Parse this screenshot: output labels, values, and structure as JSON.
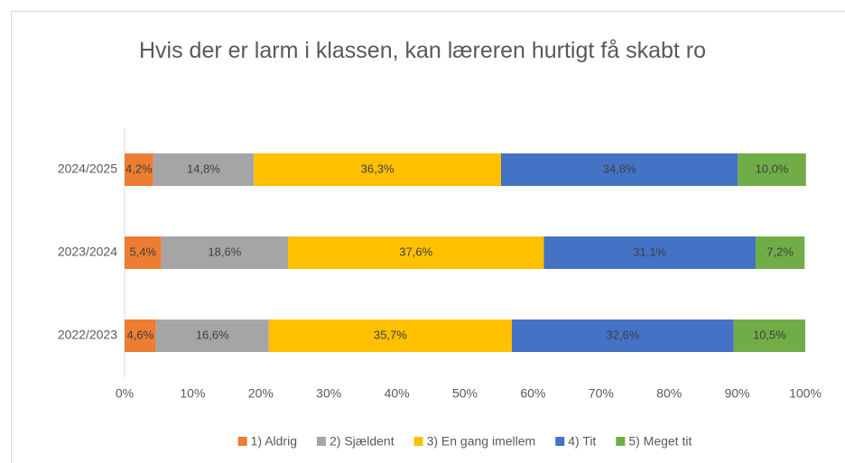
{
  "chart_data": {
    "type": "bar",
    "orientation": "horizontal",
    "stacked": true,
    "title": "Hvis der er larm i klassen, kan læreren hurtigt få skabt ro",
    "categories": [
      "2024/2025",
      "2023/2024",
      "2022/2023"
    ],
    "series": [
      {
        "name": "1) Aldrig",
        "color": "#ed7d31",
        "values": [
          4.2,
          5.4,
          4.6
        ],
        "value_labels": [
          "4,2%",
          "5,4%",
          "4,6%"
        ]
      },
      {
        "name": "2) Sjældent",
        "color": "#a5a5a5",
        "values": [
          14.8,
          18.6,
          16.6
        ],
        "value_labels": [
          "14,8%",
          "18,6%",
          "16,6%"
        ]
      },
      {
        "name": "3) En gang imellem",
        "color": "#ffc000",
        "values": [
          36.3,
          37.6,
          35.7
        ],
        "value_labels": [
          "36,3%",
          "37,6%",
          "35,7%"
        ]
      },
      {
        "name": "4) Tit",
        "color": "#4472c4",
        "values": [
          34.8,
          31.1,
          32.6
        ],
        "value_labels": [
          "34,8%",
          "31,1%",
          "32,6%"
        ]
      },
      {
        "name": "5) Meget tit",
        "color": "#70ad47",
        "values": [
          10.0,
          7.2,
          10.5
        ],
        "value_labels": [
          "10,0%",
          "7,2%",
          "10,5%"
        ]
      }
    ],
    "xlim": [
      0,
      100
    ],
    "xticks": [
      {
        "value": 0,
        "label": "0%"
      },
      {
        "value": 10,
        "label": "10%"
      },
      {
        "value": 20,
        "label": "20%"
      },
      {
        "value": 30,
        "label": "30%"
      },
      {
        "value": 40,
        "label": "40%"
      },
      {
        "value": 50,
        "label": "50%"
      },
      {
        "value": 60,
        "label": "60%"
      },
      {
        "value": 70,
        "label": "70%"
      },
      {
        "value": 80,
        "label": "80%"
      },
      {
        "value": 90,
        "label": "90%"
      },
      {
        "value": 100,
        "label": "100%"
      }
    ],
    "grid": false,
    "legend": "bottom"
  }
}
